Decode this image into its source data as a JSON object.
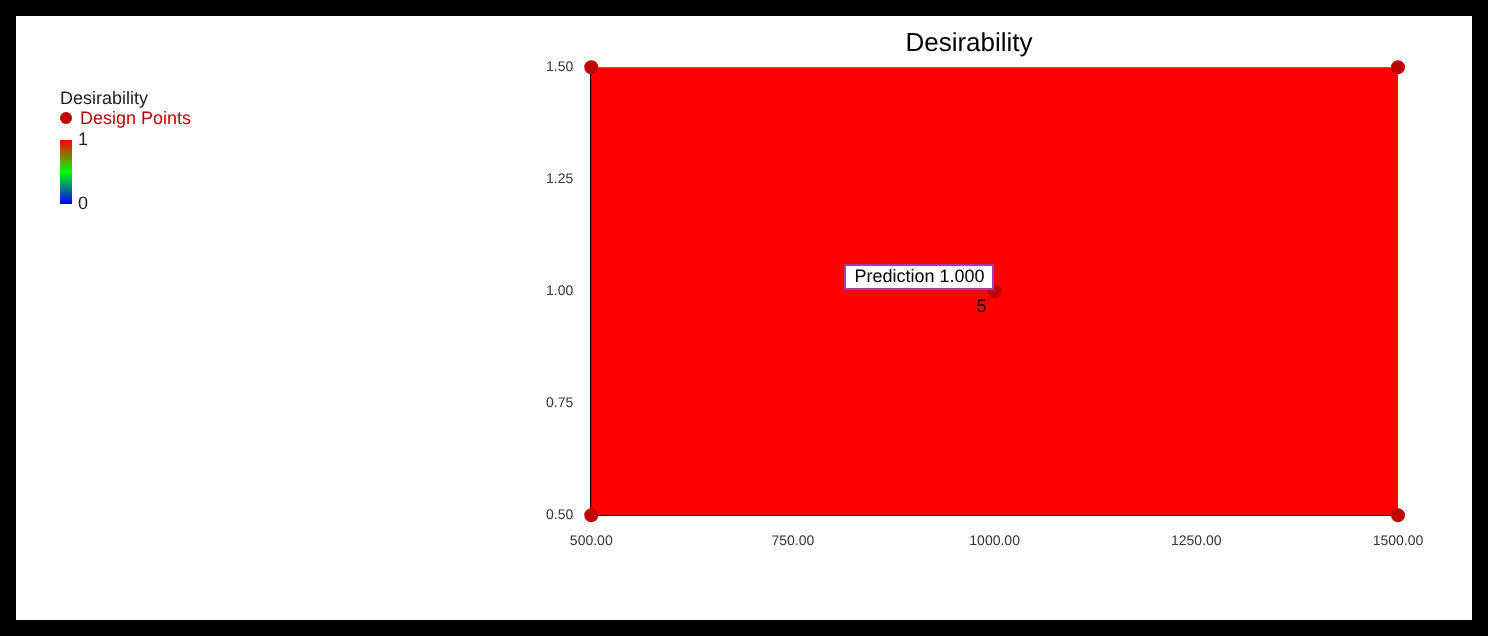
{
  "chart_data": {
    "type": "scatter",
    "title": "Desirability",
    "clabel": "Desirability",
    "clim": [
      0,
      1
    ],
    "cticks": [
      0,
      1
    ],
    "legend": "left",
    "grid": false,
    "marker": "circle",
    "xlim": [
      500,
      1500
    ],
    "xticks": [
      {
        "value": 500,
        "label": "500.00"
      },
      {
        "value": 750,
        "label": "750.00"
      },
      {
        "value": 1000,
        "label": "1000.00"
      },
      {
        "value": 1250,
        "label": "1250.00"
      },
      {
        "value": 1500,
        "label": "1500.00"
      }
    ],
    "ylim": [
      0.5,
      1.5
    ],
    "yticks": [
      {
        "value": 0.5,
        "label": "0.50"
      },
      {
        "value": 0.75,
        "label": "0.75"
      },
      {
        "value": 1,
        "label": "1.00"
      },
      {
        "value": 1.25,
        "label": "1.25"
      },
      {
        "value": 1.5,
        "label": "1.50"
      }
    ],
    "series": [
      {
        "name": "Design Points",
        "color": "#c00000",
        "x": [
          500,
          500,
          1500,
          1500,
          1000
        ],
        "values": [
          0.5,
          1.5,
          1.5,
          0.5,
          1
        ]
      }
    ],
    "bands": [
      {
        "axis": "x",
        "from": 500,
        "to": 1500,
        "color": "#ff0000"
      }
    ],
    "annotations": [
      {
        "text": "Prediction 1.000",
        "x": 1000,
        "y": 1
      },
      {
        "text": "5",
        "x": 1000,
        "y": 1
      }
    ]
  }
}
